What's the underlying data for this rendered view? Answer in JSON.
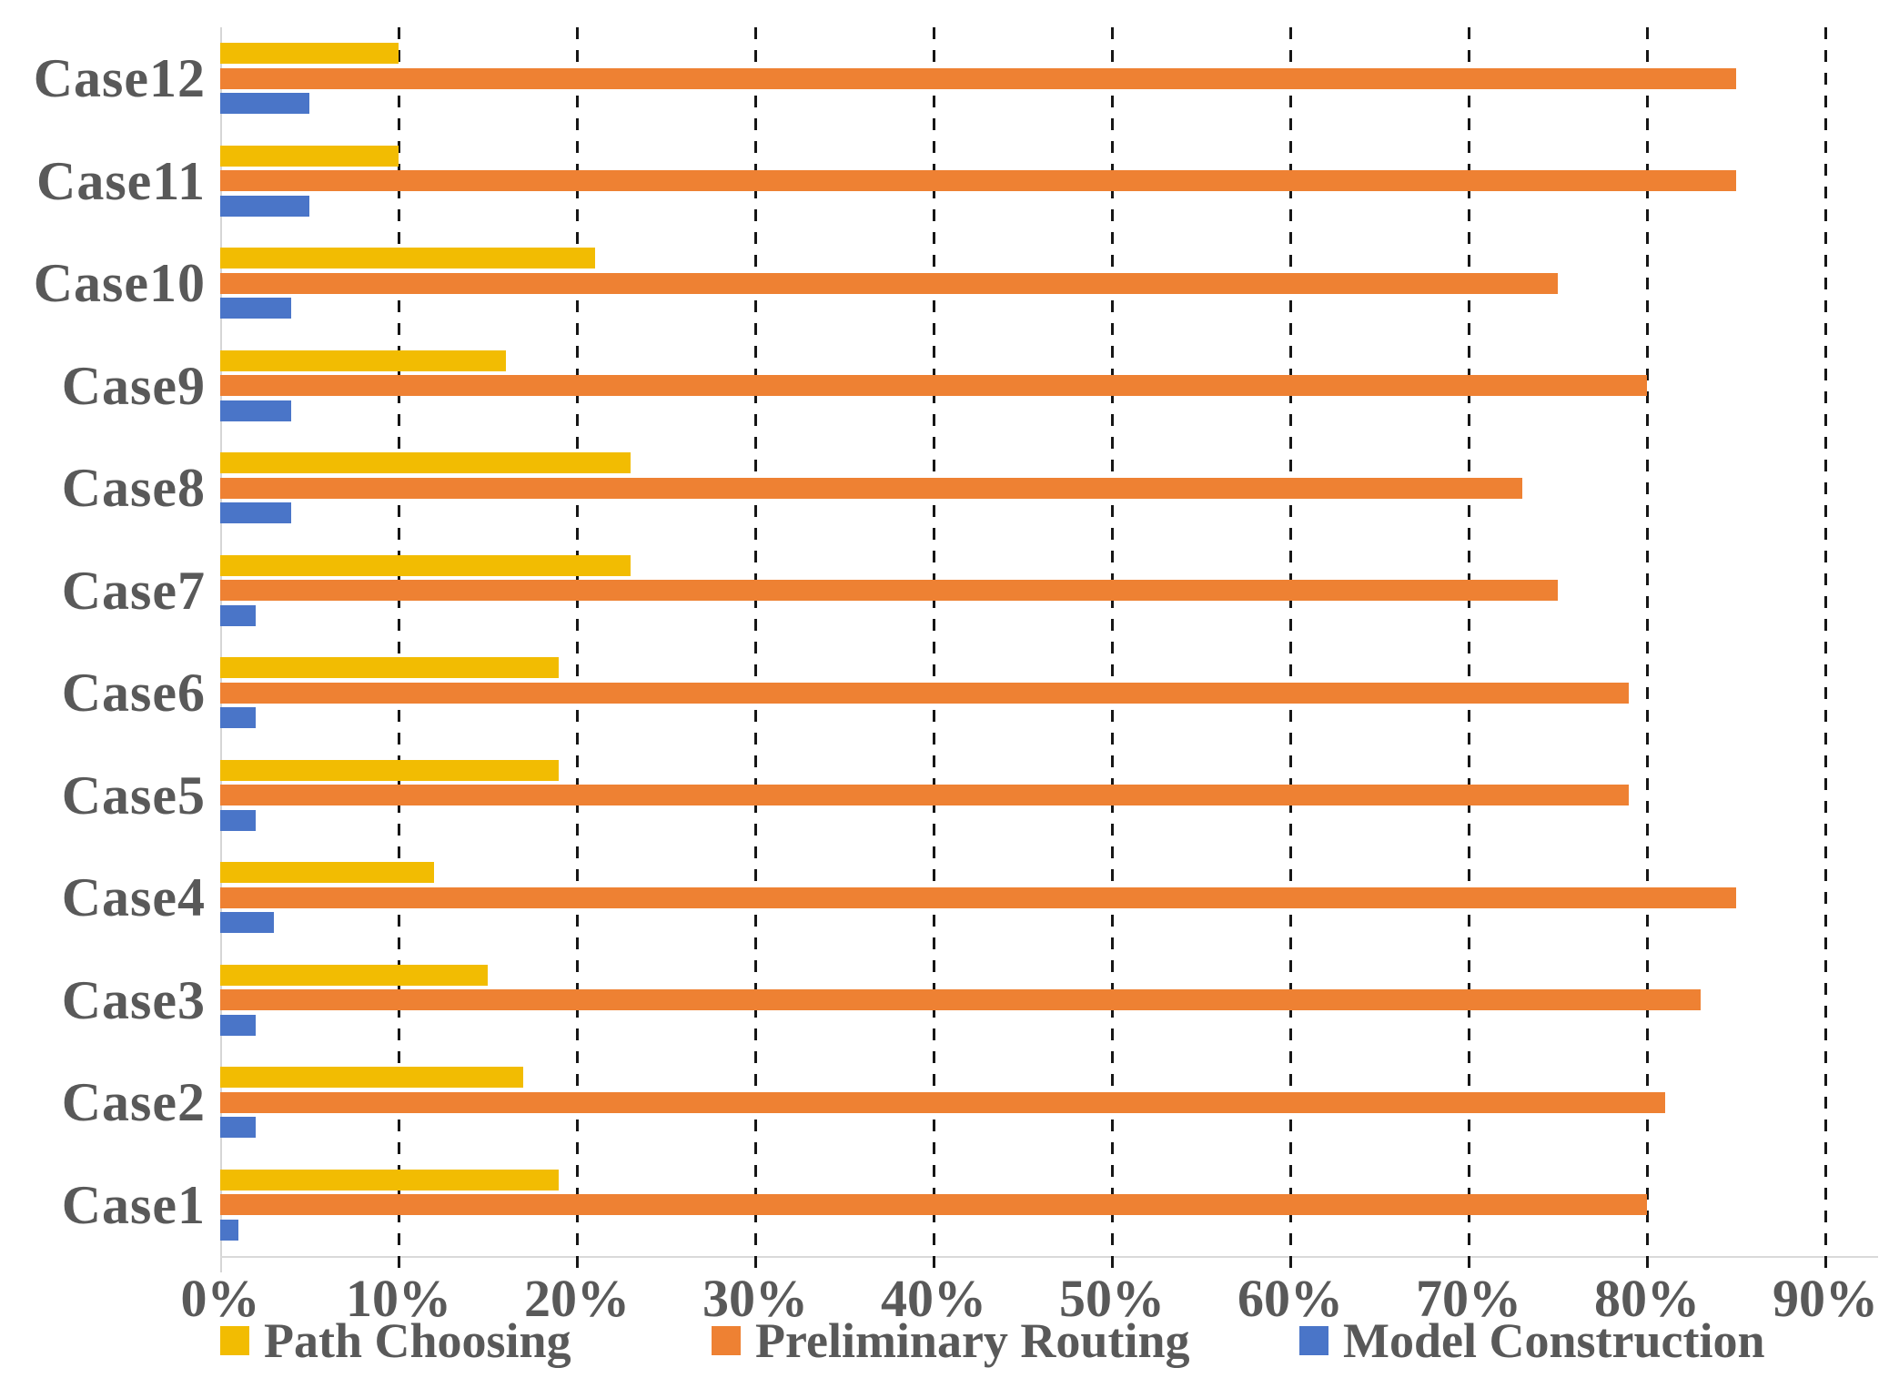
{
  "chart_data": {
    "type": "bar",
    "orientation": "horizontal",
    "title": "",
    "xlabel": "",
    "ylabel": "",
    "x_axis": {
      "min": 0,
      "max": 90,
      "unit": "%",
      "tick_labels": [
        "0%",
        "10%",
        "20%",
        "30%",
        "40%",
        "50%",
        "60%",
        "70%",
        "80%",
        "90%"
      ],
      "gridlines": "dashed-vertical"
    },
    "categories_top_to_bottom": [
      "Case12",
      "Case11",
      "Case10",
      "Case9",
      "Case8",
      "Case7",
      "Case6",
      "Case5",
      "Case4",
      "Case3",
      "Case2",
      "Case1"
    ],
    "series": [
      {
        "name": "Path Choosing",
        "color": "#F2BC02",
        "values": [
          10,
          10,
          21,
          16,
          23,
          23,
          19,
          19,
          12,
          15,
          17,
          19
        ]
      },
      {
        "name": "Preliminary Routing",
        "color": "#EE8133",
        "values": [
          85,
          85,
          75,
          80,
          73,
          75,
          79,
          79,
          85,
          83,
          81,
          80
        ]
      },
      {
        "name": "Model Construction",
        "color": "#4A75C8",
        "values": [
          5,
          5,
          4,
          4,
          4,
          2,
          2,
          2,
          3,
          2,
          2,
          1
        ]
      }
    ],
    "legend": {
      "position": "bottom",
      "entries": [
        "Path Choosing",
        "Preliminary Routing",
        "Model Construction"
      ]
    },
    "style": {
      "label_color": "#595959",
      "gridline_color": "#161616",
      "axis_line_color": "#d9d9d9",
      "background": "#ffffff"
    }
  }
}
